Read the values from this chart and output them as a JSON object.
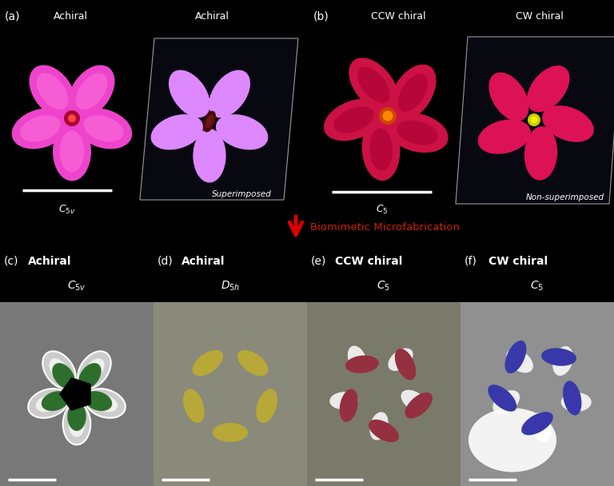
{
  "background_color": "#000000",
  "fig_width": 7.68,
  "fig_height": 6.08,
  "panel_label_color": "#ffffff",
  "top_labels_a": [
    "Achiral",
    "Achiral"
  ],
  "top_labels_b": [
    "CCW chiral",
    "CW chiral"
  ],
  "bottom_titles": [
    "Achiral",
    "Achiral",
    "CCW chiral",
    "CW chiral"
  ],
  "bottom_syms": [
    "C_{5v}",
    "D_{5h}",
    "C_5",
    "C_5"
  ],
  "bottom_panel_ids": [
    "(c)",
    "(d)",
    "(e)",
    "(f)"
  ],
  "arrow_color": "#cc0000",
  "arrow_text": "Biomimetic Microfabrication",
  "arrow_text_color": "#cc2200",
  "flower1_petal": "#ee44cc",
  "flower1_center": "#8b1a1a",
  "flower2_petal": "#dd88ff",
  "flower2_center": "#5a1010",
  "flower3_petal": "#cc1144",
  "flower3_center_outer": "#cc4400",
  "flower3_center_inner": "#ff8800",
  "flower4_petal": "#dd1155",
  "flower4_center": "#dddd00",
  "plane_face": "#0a0a14",
  "plane_edge": "#aaaaaa",
  "sem_c_bg": "#787878",
  "sem_c_white": "#cccccc",
  "sem_c_green": "#2d6e2d",
  "sem_c_black": "#000000",
  "sem_d_bg": "#8a8a7a",
  "sem_d_petal": "#b8a838",
  "sem_e_bg": "#7a7a6a",
  "sem_e_petal": "#943040",
  "sem_e_white": "#ffffff",
  "sem_f_bg": "#909090",
  "sem_f_petal": "#3838aa",
  "sem_f_white": "#ffffff",
  "label_fs": 9,
  "panel_fs": 10,
  "sym_fs": 10
}
